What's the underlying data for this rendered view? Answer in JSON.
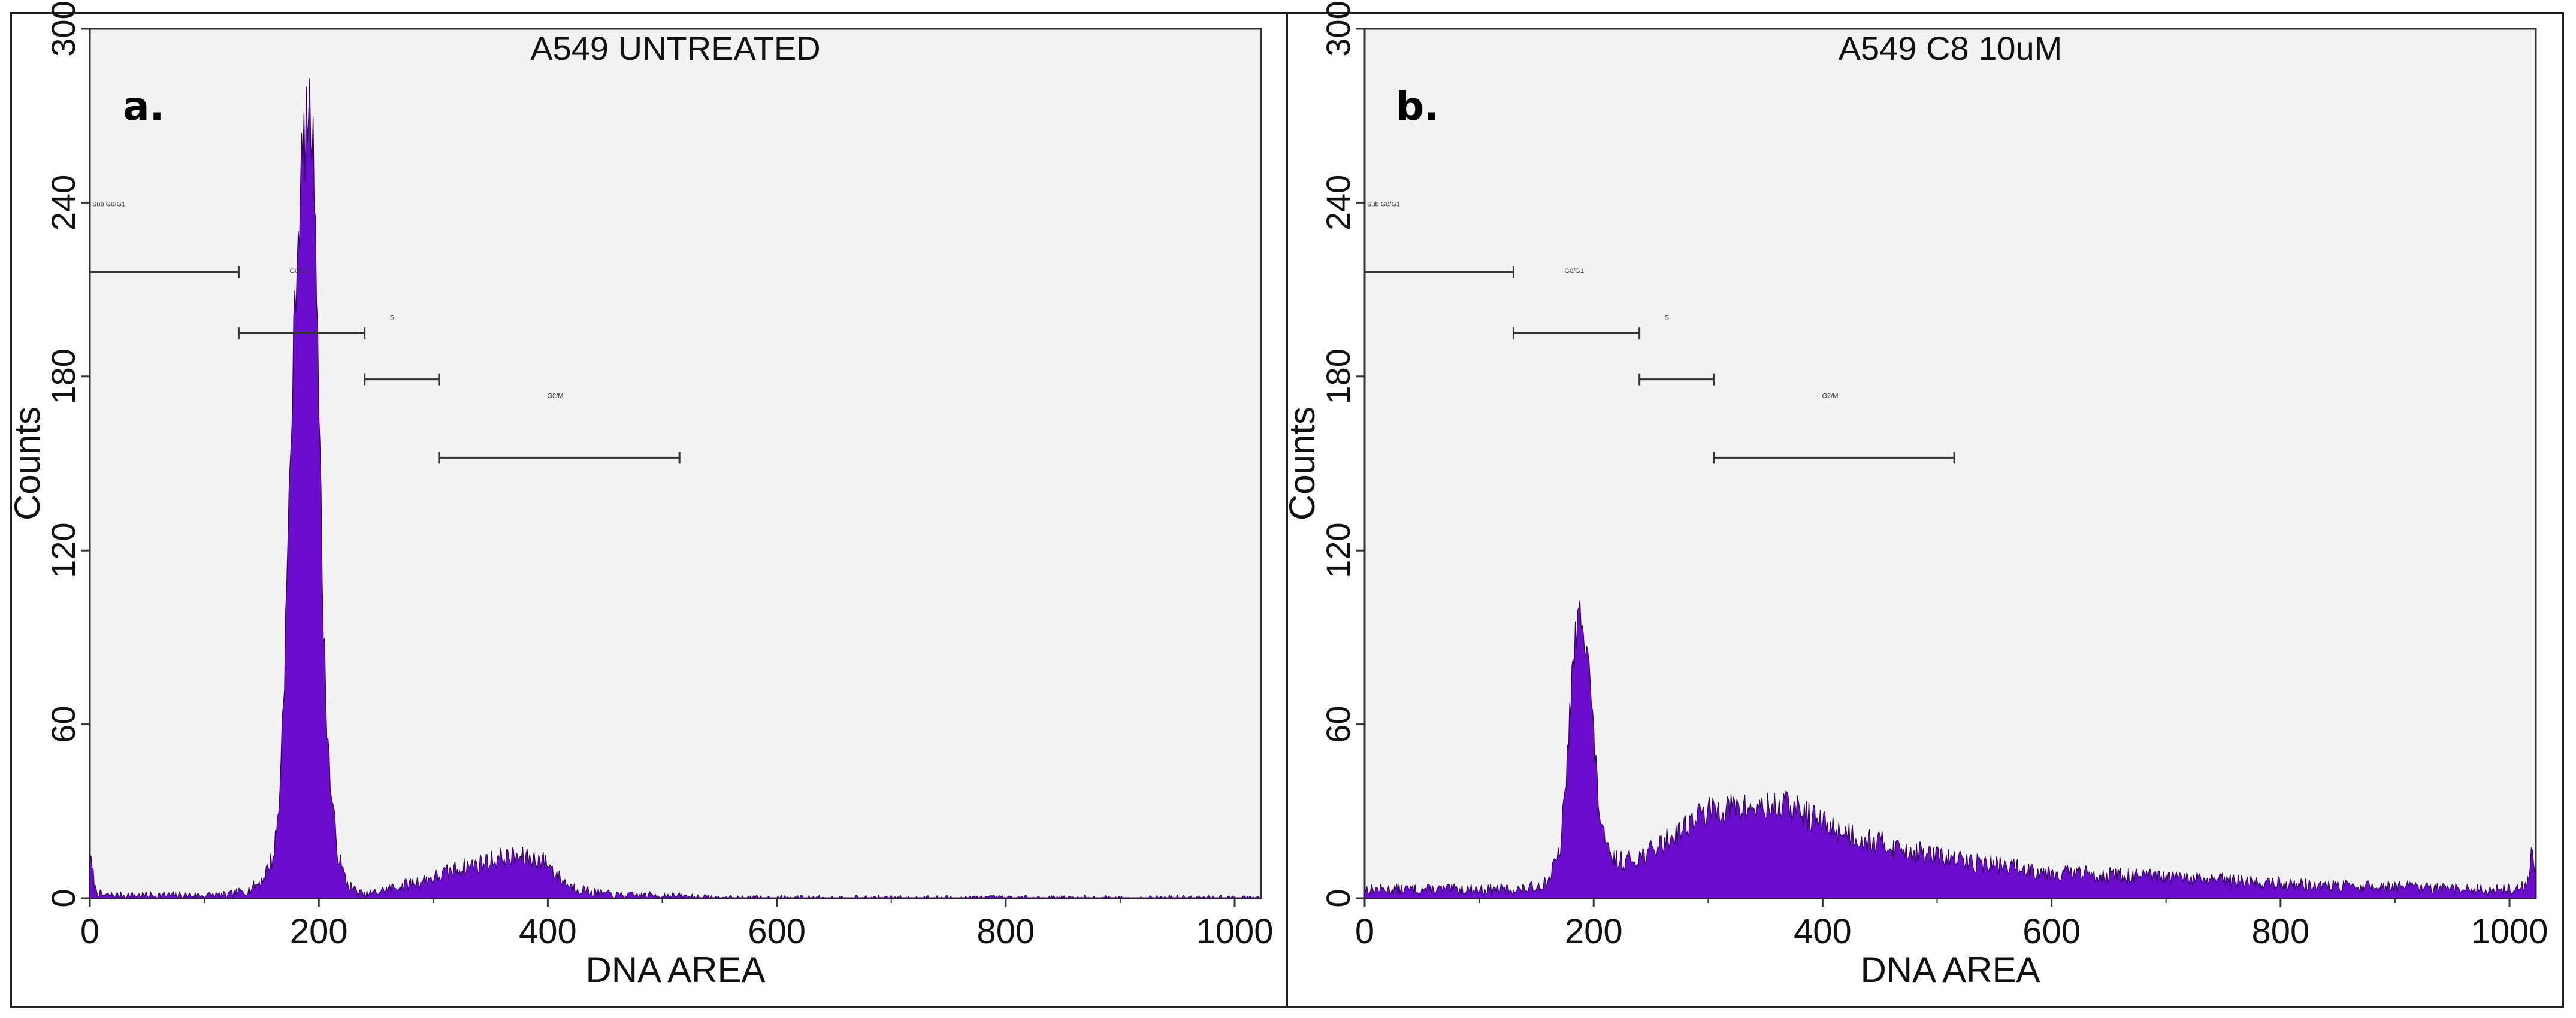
{
  "chart_data": [
    {
      "type": "area",
      "panel_label": "a.",
      "title": "A549 UNTREATED",
      "xlabel": "DNA AREA",
      "ylabel": "Counts",
      "xlim": [
        0,
        1023
      ],
      "ylim": [
        0,
        300
      ],
      "x_ticks": [
        "0",
        "200",
        "400",
        "600",
        "800",
        "1000"
      ],
      "y_ticks": [
        "0",
        "60",
        "120",
        "180",
        "240",
        "300"
      ],
      "grid": false,
      "color": "#6a0dcc",
      "series": [
        {
          "x": [
            0,
            5,
            10,
            20,
            40,
            60,
            80,
            100,
            120,
            130,
            140,
            150,
            160,
            165,
            170,
            175,
            180,
            185,
            188,
            191,
            194,
            197,
            200,
            203,
            206,
            210,
            215,
            220,
            225,
            230,
            240,
            250,
            270,
            300,
            320,
            340,
            360,
            380,
            395,
            400,
            410,
            420,
            440,
            460,
            500,
            550,
            600,
            700,
            800,
            900,
            1000,
            1023
          ],
          "y": [
            14,
            3,
            1,
            1,
            1,
            1,
            1,
            1,
            1,
            2,
            3,
            6,
            14,
            30,
            80,
            150,
            215,
            252,
            262,
            272,
            265,
            240,
            175,
            110,
            70,
            40,
            20,
            10,
            5,
            3,
            1,
            2,
            4,
            7,
            10,
            12,
            14,
            14,
            13,
            12,
            7,
            4,
            2,
            1,
            1,
            0,
            0,
            0,
            0,
            0,
            0,
            0
          ]
        }
      ],
      "gates": [
        {
          "label": "Sub G0/G1",
          "x0": 0,
          "x1": 130,
          "y": 216
        },
        {
          "label": "G0/G1",
          "x0": 130,
          "x1": 240,
          "y": 195
        },
        {
          "label": "S",
          "x0": 240,
          "x1": 305,
          "y": 179
        },
        {
          "label": "G2/M",
          "x0": 305,
          "x1": 515,
          "y": 152
        }
      ]
    },
    {
      "type": "area",
      "panel_label": "b.",
      "title": "A549 C8 10uM",
      "xlabel": "DNA AREA",
      "ylabel": "Counts",
      "xlim": [
        0,
        1023
      ],
      "ylim": [
        0,
        300
      ],
      "x_ticks": [
        "0",
        "200",
        "400",
        "600",
        "800",
        "1000"
      ],
      "y_ticks": [
        "0",
        "60",
        "120",
        "180",
        "240",
        "300"
      ],
      "grid": false,
      "color": "#6a0dcc",
      "series": [
        {
          "x": [
            0,
            20,
            40,
            60,
            80,
            100,
            120,
            140,
            150,
            160,
            170,
            175,
            180,
            185,
            190,
            195,
            200,
            205,
            210,
            215,
            220,
            230,
            250,
            270,
            290,
            310,
            330,
            350,
            370,
            390,
            410,
            440,
            480,
            520,
            560,
            600,
            650,
            700,
            750,
            800,
            850,
            900,
            950,
            1000,
            1015,
            1020,
            1023
          ],
          "y": [
            3,
            3,
            3,
            3,
            3,
            3,
            3,
            3,
            4,
            6,
            15,
            35,
            70,
            92,
            100,
            85,
            55,
            30,
            18,
            14,
            13,
            13,
            16,
            22,
            28,
            31,
            31,
            31,
            32,
            28,
            24,
            20,
            16,
            13,
            11,
            9,
            8,
            7,
            6,
            5,
            4,
            4,
            3,
            3,
            4,
            18,
            8
          ]
        }
      ],
      "gates": [
        {
          "label": "Sub G0/G1",
          "x0": 0,
          "x1": 130,
          "y": 216
        },
        {
          "label": "G0/G1",
          "x0": 130,
          "x1": 240,
          "y": 195
        },
        {
          "label": "S",
          "x0": 240,
          "x1": 305,
          "y": 179
        },
        {
          "label": "G2/M",
          "x0": 305,
          "x1": 515,
          "y": 152
        }
      ]
    }
  ]
}
